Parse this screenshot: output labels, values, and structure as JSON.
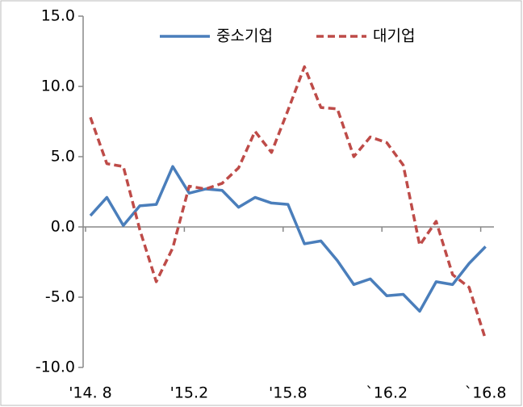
{
  "chart_data": {
    "type": "line",
    "categories": [
      "'14. 8",
      null,
      null,
      null,
      null,
      null,
      "'15.2",
      null,
      null,
      null,
      null,
      null,
      "'15.8",
      null,
      null,
      null,
      null,
      null,
      "`16.2",
      null,
      null,
      null,
      null,
      null,
      "`16.8"
    ],
    "series": [
      {
        "name": "중소기업",
        "color": "#4a7ebb",
        "dash": false,
        "values": [
          0.8,
          2.1,
          0.1,
          1.5,
          1.6,
          4.3,
          2.4,
          2.7,
          2.6,
          1.4,
          2.1,
          1.7,
          1.6,
          -1.2,
          -1.0,
          -2.4,
          -4.1,
          -3.7,
          -4.9,
          -4.8,
          -6.0,
          -3.9,
          -4.1,
          -2.6,
          -1.4
        ]
      },
      {
        "name": "대기업",
        "color": "#be4b48",
        "dash": true,
        "values": [
          7.8,
          4.5,
          4.3,
          -0.2,
          -3.9,
          -1.5,
          2.9,
          2.7,
          3.1,
          4.2,
          6.8,
          5.3,
          8.3,
          11.4,
          8.5,
          8.4,
          5.0,
          6.4,
          6.0,
          4.4,
          -1.3,
          0.4,
          -3.4,
          -4.3,
          -8.0
        ]
      }
    ],
    "ylim": [
      -10,
      15
    ],
    "yticks": [
      {
        "value": -10,
        "label": "-10.0"
      },
      {
        "value": -5,
        "label": "-5.0"
      },
      {
        "value": 0,
        "label": "0.0"
      },
      {
        "value": 5,
        "label": "5.0"
      },
      {
        "value": 10,
        "label": "10.0"
      },
      {
        "value": 15,
        "label": "15.0"
      }
    ],
    "grid": false,
    "legend": "top"
  }
}
